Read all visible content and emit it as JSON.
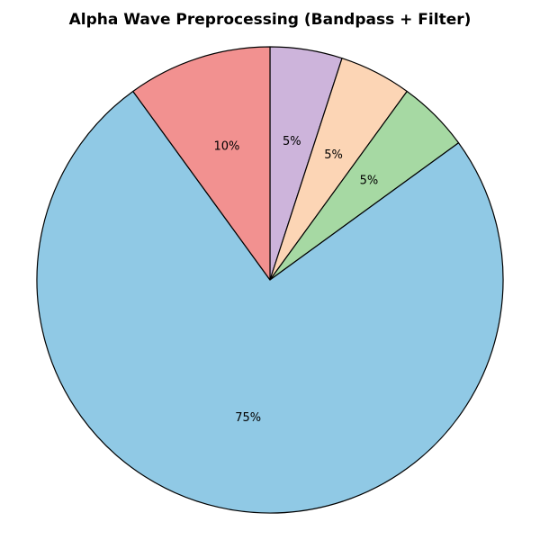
{
  "chart_data": {
    "type": "pie",
    "title": "Alpha Wave Preprocessing (Bandpass + Filter)",
    "start_angle_deg": 90,
    "direction": "clockwise",
    "slices": [
      {
        "value": 5,
        "label": "5%",
        "color": "#cdb4db"
      },
      {
        "value": 5,
        "label": "5%",
        "color": "#fcd5b5"
      },
      {
        "value": 5,
        "label": "5%",
        "color": "#a6d9a3"
      },
      {
        "value": 75,
        "label": "75%",
        "color": "#90c9e5"
      },
      {
        "value": 10,
        "label": "10%",
        "color": "#f29190"
      }
    ],
    "edge_color": "#000000"
  }
}
